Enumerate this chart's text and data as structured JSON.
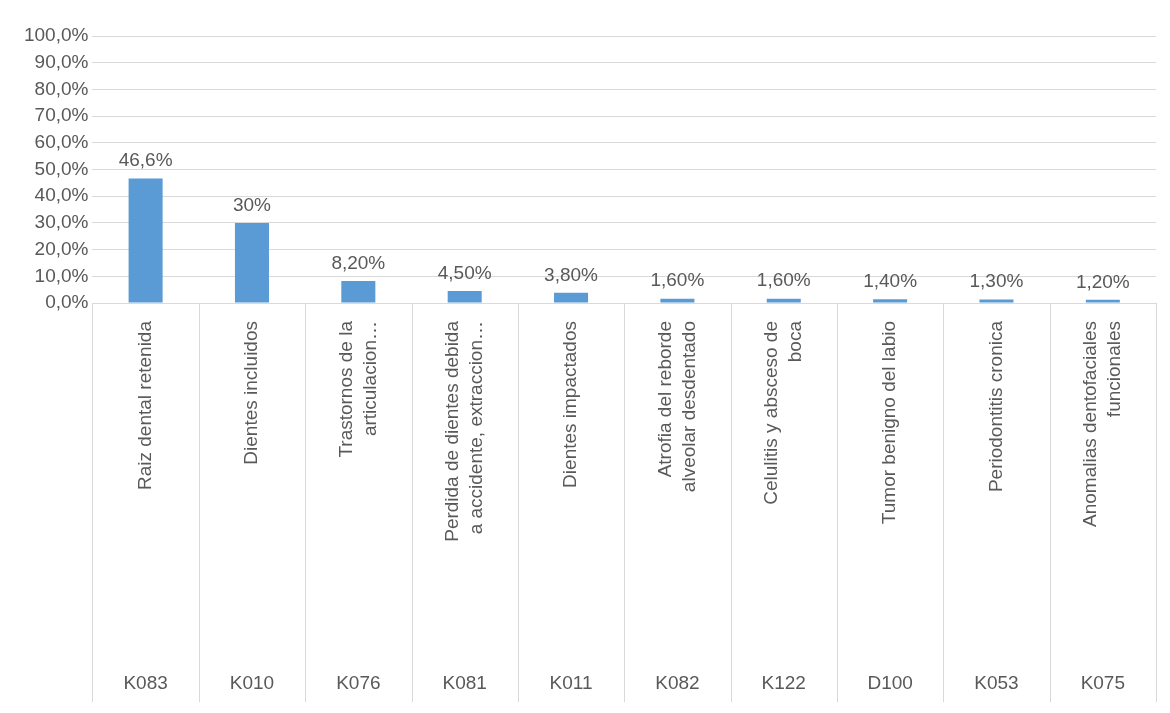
{
  "chart_data": {
    "type": "bar",
    "categories": [
      "Raiz dental retenida",
      "Dientes incluidos",
      "Trastornos de la articulacion…",
      "Perdida de dientes debida a accidente, extraccion…",
      "Dientes impactados",
      "Atrofia del reborde alveolar desdentado",
      "Celulitis y absceso de boca",
      "Tumor benigno del labio",
      "Periodontitis cronica",
      "Anomalias dentofaciales funcionales"
    ],
    "values": [
      46.6,
      30,
      8.2,
      4.5,
      3.8,
      1.6,
      1.6,
      1.4,
      1.3,
      1.2
    ],
    "value_labels": [
      "46,6%",
      "30%",
      "8,20%",
      "4,50%",
      "3,80%",
      "1,60%",
      "1,60%",
      "1,40%",
      "1,30%",
      "1,20%"
    ],
    "color": "#5b9bd5",
    "ylim": [
      0,
      100
    ],
    "yticks": [
      {
        "value": 0,
        "label": "0,0%"
      },
      {
        "value": 10,
        "label": "10,0%"
      },
      {
        "value": 20,
        "label": "20,0%"
      },
      {
        "value": 30,
        "label": "30,0%"
      },
      {
        "value": 40,
        "label": "40,0%"
      },
      {
        "value": 50,
        "label": "50,0%"
      },
      {
        "value": 60,
        "label": "60,0%"
      },
      {
        "value": 70,
        "label": "70,0%"
      },
      {
        "value": 80,
        "label": "80,0%"
      },
      {
        "value": 90,
        "label": "90,0%"
      },
      {
        "value": 100,
        "label": "100,0%"
      }
    ],
    "grid": "y",
    "legend": false,
    "annotations": [
      "K083",
      "K010",
      "K076",
      "K081",
      "K011",
      "K082",
      "K122",
      "D100",
      "K053",
      "K075"
    ]
  }
}
